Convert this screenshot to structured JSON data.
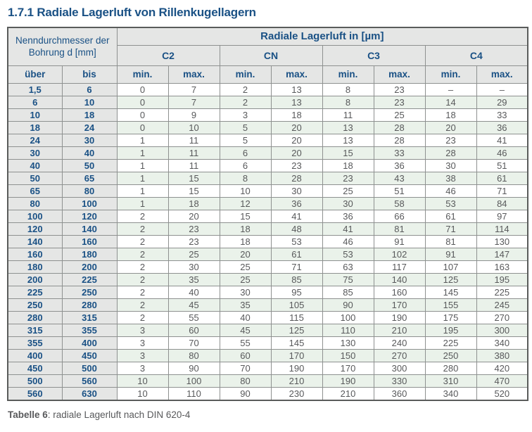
{
  "page_title": "1.7.1 Radiale Lagerluft von Rillenkugellagern",
  "colors": {
    "accent_blue": "#1A5185",
    "header_bg": "#E5E6E5",
    "stripe_green": "#EAF2EA",
    "grid_line": "#8E9190",
    "text_gray": "#58595B"
  },
  "table": {
    "header": {
      "left_group": "Nenndurchmesser der Bohrung d [mm]",
      "right_group": "Radiale Lagerluft in [µm]",
      "classes": [
        "C2",
        "CN",
        "C3",
        "C4"
      ],
      "subheaders": [
        "über",
        "bis",
        "min.",
        "max.",
        "min.",
        "max.",
        "min.",
        "max.",
        "min.",
        "max."
      ]
    },
    "rows": [
      {
        "ueber": "1,5",
        "bis": "6",
        "values": [
          "0",
          "7",
          "2",
          "13",
          "8",
          "23",
          "–",
          "–"
        ]
      },
      {
        "ueber": "6",
        "bis": "10",
        "values": [
          "0",
          "7",
          "2",
          "13",
          "8",
          "23",
          "14",
          "29"
        ]
      },
      {
        "ueber": "10",
        "bis": "18",
        "values": [
          "0",
          "9",
          "3",
          "18",
          "11",
          "25",
          "18",
          "33"
        ]
      },
      {
        "ueber": "18",
        "bis": "24",
        "values": [
          "0",
          "10",
          "5",
          "20",
          "13",
          "28",
          "20",
          "36"
        ]
      },
      {
        "ueber": "24",
        "bis": "30",
        "values": [
          "1",
          "11",
          "5",
          "20",
          "13",
          "28",
          "23",
          "41"
        ]
      },
      {
        "ueber": "30",
        "bis": "40",
        "values": [
          "1",
          "11",
          "6",
          "20",
          "15",
          "33",
          "28",
          "46"
        ]
      },
      {
        "ueber": "40",
        "bis": "50",
        "values": [
          "1",
          "11",
          "6",
          "23",
          "18",
          "36",
          "30",
          "51"
        ]
      },
      {
        "ueber": "50",
        "bis": "65",
        "values": [
          "1",
          "15",
          "8",
          "28",
          "23",
          "43",
          "38",
          "61"
        ]
      },
      {
        "ueber": "65",
        "bis": "80",
        "values": [
          "1",
          "15",
          "10",
          "30",
          "25",
          "51",
          "46",
          "71"
        ]
      },
      {
        "ueber": "80",
        "bis": "100",
        "values": [
          "1",
          "18",
          "12",
          "36",
          "30",
          "58",
          "53",
          "84"
        ]
      },
      {
        "ueber": "100",
        "bis": "120",
        "values": [
          "2",
          "20",
          "15",
          "41",
          "36",
          "66",
          "61",
          "97"
        ]
      },
      {
        "ueber": "120",
        "bis": "140",
        "values": [
          "2",
          "23",
          "18",
          "48",
          "41",
          "81",
          "71",
          "114"
        ]
      },
      {
        "ueber": "140",
        "bis": "160",
        "values": [
          "2",
          "23",
          "18",
          "53",
          "46",
          "91",
          "81",
          "130"
        ]
      },
      {
        "ueber": "160",
        "bis": "180",
        "values": [
          "2",
          "25",
          "20",
          "61",
          "53",
          "102",
          "91",
          "147"
        ]
      },
      {
        "ueber": "180",
        "bis": "200",
        "values": [
          "2",
          "30",
          "25",
          "71",
          "63",
          "117",
          "107",
          "163"
        ]
      },
      {
        "ueber": "200",
        "bis": "225",
        "values": [
          "2",
          "35",
          "25",
          "85",
          "75",
          "140",
          "125",
          "195"
        ]
      },
      {
        "ueber": "225",
        "bis": "250",
        "values": [
          "2",
          "40",
          "30",
          "95",
          "85",
          "160",
          "145",
          "225"
        ]
      },
      {
        "ueber": "250",
        "bis": "280",
        "values": [
          "2",
          "45",
          "35",
          "105",
          "90",
          "170",
          "155",
          "245"
        ]
      },
      {
        "ueber": "280",
        "bis": "315",
        "values": [
          "2",
          "55",
          "40",
          "115",
          "100",
          "190",
          "175",
          "270"
        ]
      },
      {
        "ueber": "315",
        "bis": "355",
        "values": [
          "3",
          "60",
          "45",
          "125",
          "110",
          "210",
          "195",
          "300"
        ]
      },
      {
        "ueber": "355",
        "bis": "400",
        "values": [
          "3",
          "70",
          "55",
          "145",
          "130",
          "240",
          "225",
          "340"
        ]
      },
      {
        "ueber": "400",
        "bis": "450",
        "values": [
          "3",
          "80",
          "60",
          "170",
          "150",
          "270",
          "250",
          "380"
        ]
      },
      {
        "ueber": "450",
        "bis": "500",
        "values": [
          "3",
          "90",
          "70",
          "190",
          "170",
          "300",
          "280",
          "420"
        ]
      },
      {
        "ueber": "500",
        "bis": "560",
        "values": [
          "10",
          "100",
          "80",
          "210",
          "190",
          "330",
          "310",
          "470"
        ]
      },
      {
        "ueber": "560",
        "bis": "630",
        "values": [
          "10",
          "110",
          "90",
          "230",
          "210",
          "360",
          "340",
          "520"
        ]
      }
    ]
  },
  "caption": {
    "label": "Tabelle 6",
    "text": ": radiale Lagerluft nach DIN 620-4"
  }
}
